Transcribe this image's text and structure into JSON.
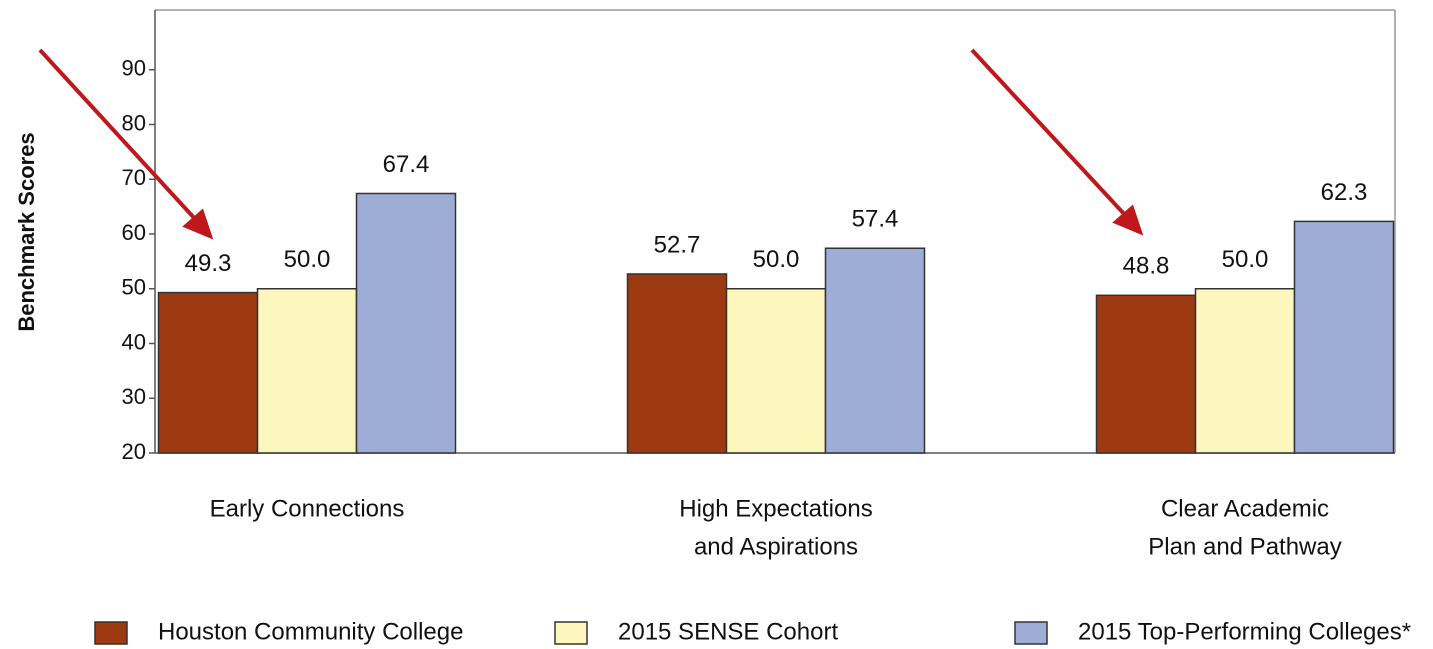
{
  "chart_data": {
    "type": "bar",
    "y_label": "Benchmark Scores",
    "categories": [
      [
        "Early Connections"
      ],
      [
        "High Expectations",
        "and Aspirations"
      ],
      [
        "Clear Academic",
        "Plan and Pathway"
      ]
    ],
    "series": [
      {
        "name": "Houston Community College",
        "color": "#9e3a12",
        "values": [
          49.3,
          52.7,
          48.8
        ],
        "value_labels": [
          "49.3",
          "52.7",
          "48.8"
        ]
      },
      {
        "name": "2015 SENSE Cohort",
        "color": "#fdf6bd",
        "values": [
          50,
          50,
          50
        ],
        "value_labels": [
          "50.0",
          "50.0",
          "50.0"
        ]
      },
      {
        "name": "2015 Top-Performing Colleges*",
        "color": "#9dadd6",
        "values": [
          67.4,
          57.4,
          62.3
        ],
        "value_labels": [
          "67.4",
          "57.4",
          "62.3"
        ]
      }
    ],
    "ylim": [
      20,
      100
    ],
    "yticks": [
      20,
      30,
      40,
      50,
      60,
      70,
      80,
      90
    ]
  }
}
